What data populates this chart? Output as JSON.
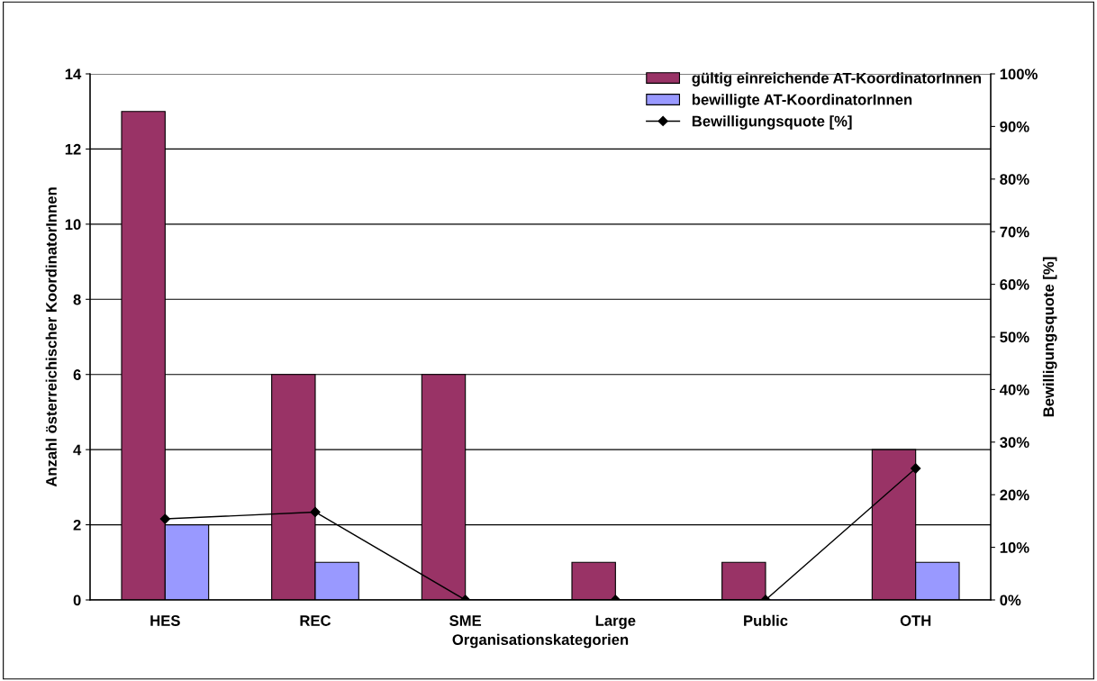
{
  "chart_data": {
    "type": "bar",
    "xlabel": "Organisationskategorien",
    "ylabel": "Anzahl österreichischer KoordinatorInnen",
    "y2label": "Bewilligungsquote [%]",
    "categories": [
      "HES",
      "REC",
      "SME",
      "Large",
      "Public",
      "OTH"
    ],
    "series": [
      {
        "name": "gültig einreichende AT-KoordinatorInnen",
        "color": "#993366",
        "values": [
          13,
          6,
          6,
          1,
          1,
          4
        ]
      },
      {
        "name": "bewilligte AT-KoordinatorInnen",
        "color": "#9999ff",
        "values": [
          2,
          1,
          0,
          0,
          0,
          1
        ]
      },
      {
        "name": "Bewilligungsquote [%]",
        "type": "line",
        "axis": "y2",
        "color": "#000000",
        "marker": "diamond",
        "values": [
          15.4,
          16.7,
          0,
          0,
          0,
          25
        ]
      }
    ],
    "ylim": [
      0,
      14
    ],
    "yticks": [
      0,
      2,
      4,
      6,
      8,
      10,
      12,
      14
    ],
    "y2lim": [
      0,
      100
    ],
    "y2ticks": [
      {
        "value": 0,
        "label": "0%"
      },
      {
        "value": 10,
        "label": "10%"
      },
      {
        "value": 20,
        "label": "20%"
      },
      {
        "value": 30,
        "label": "30%"
      },
      {
        "value": 40,
        "label": "40%"
      },
      {
        "value": 50,
        "label": "50%"
      },
      {
        "value": 60,
        "label": "60%"
      },
      {
        "value": 70,
        "label": "70%"
      },
      {
        "value": 80,
        "label": "80%"
      },
      {
        "value": 90,
        "label": "90%"
      },
      {
        "value": 100,
        "label": "100%"
      }
    ],
    "grid": "y",
    "legend": "top right"
  }
}
